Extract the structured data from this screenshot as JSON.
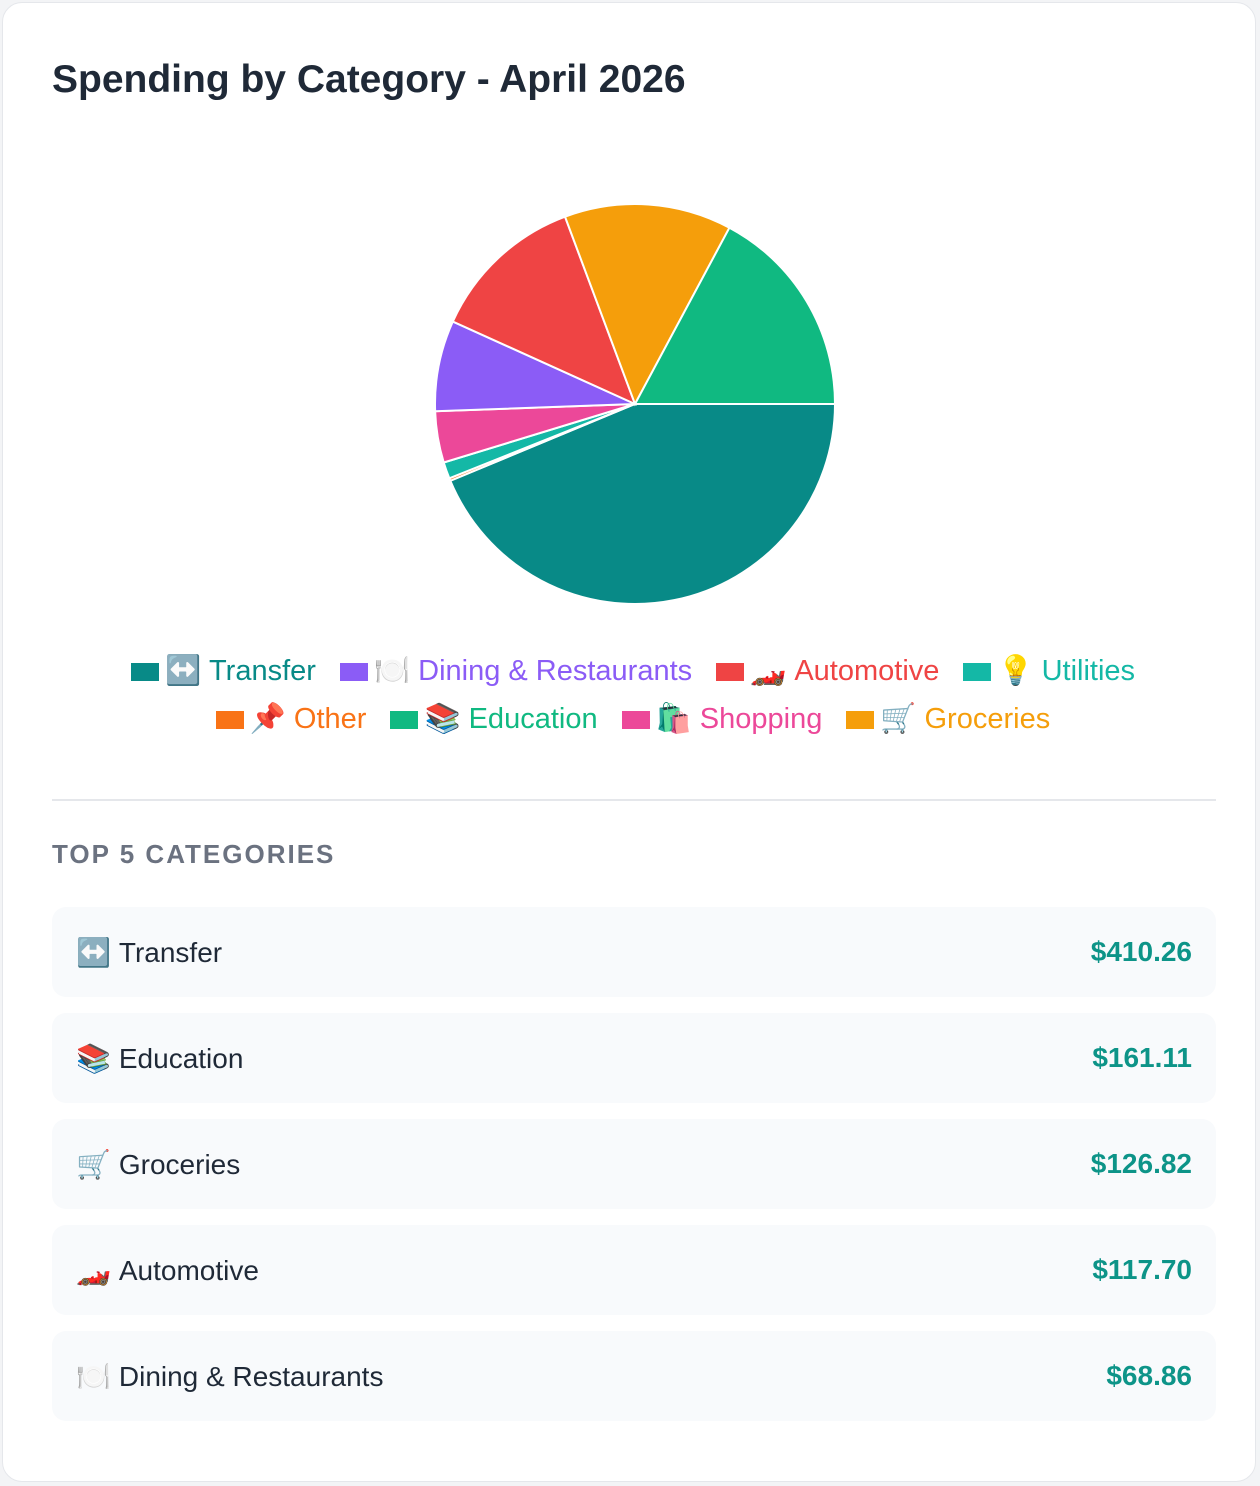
{
  "title": "Spending by Category - April 2026",
  "chart_data": {
    "type": "pie",
    "title": "Spending by Category - April 2026",
    "slices": [
      {
        "name": "Transfer",
        "emoji": "↔️",
        "value": 410.26,
        "color": "#088a87"
      },
      {
        "name": "Other",
        "emoji": "📌",
        "value": 2.0,
        "color": "#f97316"
      },
      {
        "name": "Utilities",
        "emoji": "💡",
        "value": 12.5,
        "color": "#14b8a6"
      },
      {
        "name": "Shopping",
        "emoji": "🛍️",
        "value": 38.9,
        "color": "#ec4899"
      },
      {
        "name": "Dining & Restaurants",
        "emoji": "🍽️",
        "value": 68.86,
        "color": "#8b5cf6"
      },
      {
        "name": "Automotive",
        "emoji": "🏎️",
        "value": 117.7,
        "color": "#ef4444"
      },
      {
        "name": "Groceries",
        "emoji": "🛒",
        "value": 126.82,
        "color": "#f59e0b"
      },
      {
        "name": "Education",
        "emoji": "📚",
        "value": 161.11,
        "color": "#10b981"
      }
    ],
    "legend_placement": "bottom"
  },
  "legend": [
    {
      "emoji": "↔️",
      "label": "Transfer",
      "color": "#088a87"
    },
    {
      "emoji": "🍽️",
      "label": "Dining & Restaurants",
      "color": "#8b5cf6"
    },
    {
      "emoji": "🏎️",
      "label": "Automotive",
      "color": "#ef4444"
    },
    {
      "emoji": "💡",
      "label": "Utilities",
      "color": "#14b8a6"
    },
    {
      "emoji": "📌",
      "label": "Other",
      "color": "#f97316"
    },
    {
      "emoji": "📚",
      "label": "Education",
      "color": "#10b981"
    },
    {
      "emoji": "🛍️",
      "label": "Shopping",
      "color": "#ec4899"
    },
    {
      "emoji": "🛒",
      "label": "Groceries",
      "color": "#f59e0b"
    }
  ],
  "top_categories": {
    "heading": "TOP 5 CATEGORIES",
    "rows": [
      {
        "emoji": "↔️",
        "label": "Transfer",
        "amount": "$410.26"
      },
      {
        "emoji": "📚",
        "label": "Education",
        "amount": "$161.11"
      },
      {
        "emoji": "🛒",
        "label": "Groceries",
        "amount": "$126.82"
      },
      {
        "emoji": "🏎️",
        "label": "Automotive",
        "amount": "$117.70"
      },
      {
        "emoji": "🍽️",
        "label": "Dining & Restaurants",
        "amount": "$68.86"
      }
    ]
  }
}
